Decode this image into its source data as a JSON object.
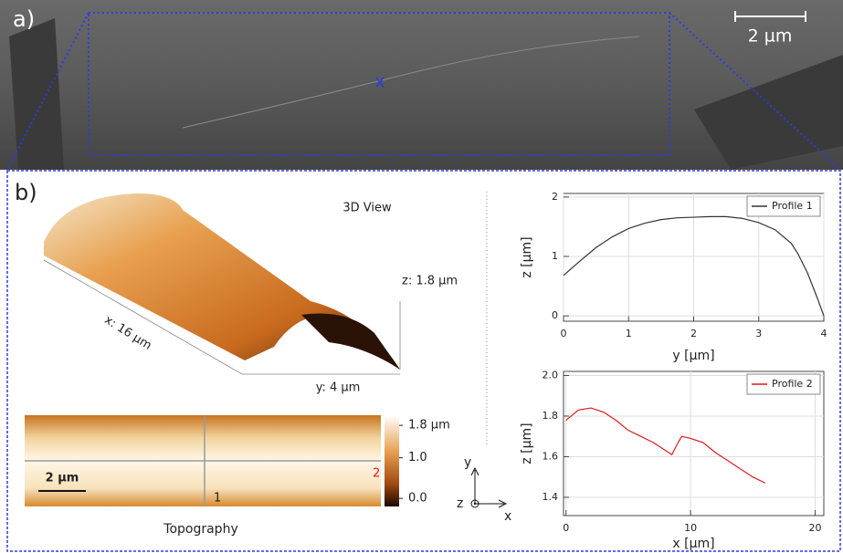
{
  "panel_a": {
    "label": "a)",
    "scale_bar": "2 µm",
    "marker": "x"
  },
  "panel_b": {
    "label": "b)",
    "view_title": "3D View",
    "x_extent": "x: 16 µm",
    "y_extent": "y: 4 µm",
    "z_extent": "z: 1.8 µm",
    "topography": {
      "title": "Topography",
      "scale_bar": "2 µm",
      "line_1": "1",
      "line_2": "2",
      "colorbar": {
        "lim": [
          -0.2,
          2.05
        ],
        "ticks": [
          {
            "value": 1.8,
            "label": "1.8 µm"
          },
          {
            "value": 1,
            "label": "1.0"
          },
          {
            "value": 0,
            "label": "0.0"
          }
        ]
      }
    },
    "axes": {
      "y": "y",
      "z": "z",
      "x": "x"
    }
  },
  "chart_data": [
    {
      "type": "line",
      "xlabel": "y [µm]",
      "ylabel": "z [µm]",
      "x": [
        0,
        0.25,
        0.5,
        0.75,
        1,
        1.25,
        1.5,
        1.75,
        2,
        2.25,
        2.5,
        2.75,
        3,
        3.25,
        3.5,
        3.6,
        3.75,
        3.9,
        4
      ],
      "series": [
        {
          "name": "Profile 1",
          "color": "#333333",
          "values": [
            0.68,
            0.92,
            1.15,
            1.33,
            1.47,
            1.56,
            1.62,
            1.65,
            1.66,
            1.67,
            1.67,
            1.64,
            1.57,
            1.45,
            1.22,
            1.05,
            0.72,
            0.3,
            0.0
          ]
        }
      ],
      "xlim": [
        0,
        4
      ],
      "ylim": [
        -0.09,
        2.06
      ],
      "xticks": [
        0,
        1,
        2,
        3,
        4
      ],
      "yticks": [
        0,
        1,
        2
      ],
      "grid": true,
      "legend": "upper-right"
    },
    {
      "type": "line",
      "xlabel": "x [µm]",
      "ylabel": "z [µm]",
      "x": [
        0,
        1,
        2,
        3,
        4,
        5,
        6,
        7,
        8,
        8.5,
        9,
        9.3,
        10,
        11,
        12,
        13,
        14,
        15,
        16
      ],
      "series": [
        {
          "name": "Profile 2",
          "color": "#e0191b",
          "values": [
            1.78,
            1.83,
            1.84,
            1.82,
            1.78,
            1.73,
            1.7,
            1.67,
            1.63,
            1.61,
            1.67,
            1.7,
            1.69,
            1.67,
            1.62,
            1.58,
            1.54,
            1.5,
            1.47
          ]
        }
      ],
      "xlim": [
        -0.2,
        20.7
      ],
      "ylim": [
        1.31,
        2.02
      ],
      "xticks": [
        0,
        10,
        20
      ],
      "yticks": [
        1.4,
        1.6,
        1.8,
        {
          "value": 2,
          "label": "2.0"
        }
      ],
      "grid": true,
      "legend": "upper-right"
    }
  ]
}
